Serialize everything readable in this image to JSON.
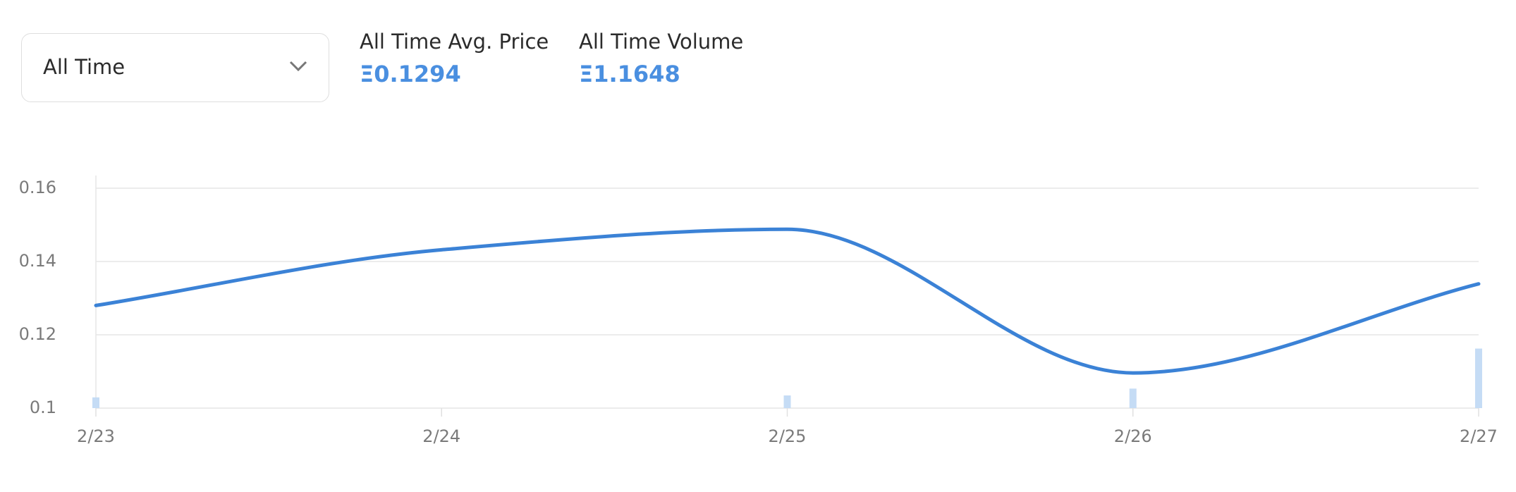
{
  "filter": {
    "selected": "All Time"
  },
  "stats": [
    {
      "label": "All Time Avg. Price",
      "value": "Ξ0.1294"
    },
    {
      "label": "All Time Volume",
      "value": "Ξ1.1648"
    }
  ],
  "chart_data": {
    "type": "line",
    "categories": [
      "2/23",
      "2/24",
      "2/25",
      "2/26",
      "2/27"
    ],
    "series": [
      {
        "name": "Price",
        "color": "#3b82d6",
        "values": [
          0.128,
          0.1432,
          0.1488,
          0.1096,
          0.1339
        ]
      },
      {
        "name": "Volume",
        "color": "#c5dcf5",
        "axis": "y2",
        "values": [
          0.122,
          null,
          0.144,
          0.222,
          0.677
        ]
      }
    ],
    "ylim": [
      0.1,
      0.16
    ],
    "yticks": [
      0.1,
      0.12,
      0.14,
      0.16
    ],
    "y2lim": [
      0,
      2.5
    ],
    "grid": true
  }
}
